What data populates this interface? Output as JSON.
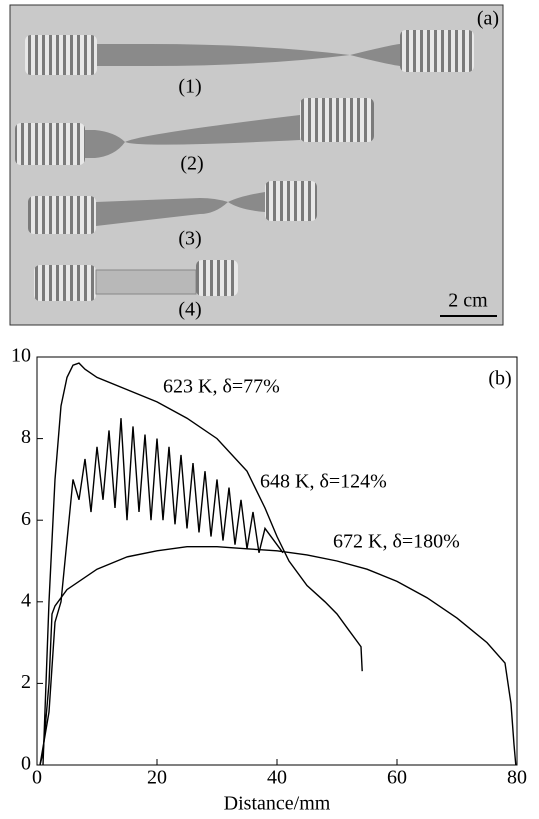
{
  "photo": {
    "panel_label": "(a)",
    "specimens": [
      "(1)",
      "(2)",
      "(3)",
      "(4)"
    ],
    "scale_bar": "2 cm"
  },
  "chart_data": {
    "type": "line",
    "panel_label": "(b)",
    "xlabel": "Distance/mm",
    "xlim": [
      0,
      80
    ],
    "xticks": [
      0,
      20,
      40,
      60,
      80
    ],
    "ylim": [
      0,
      10
    ],
    "yticks": [
      0,
      2,
      4,
      6,
      8,
      10
    ],
    "series": [
      {
        "name": "623 K, δ=77%",
        "color": "#000000",
        "x": [
          1,
          2,
          3,
          4,
          5,
          6,
          7,
          8,
          10,
          15,
          20,
          25,
          30,
          35,
          38,
          40,
          42,
          45,
          48,
          50,
          52,
          54,
          54.2
        ],
        "values": [
          0,
          4,
          7,
          8.8,
          9.5,
          9.8,
          9.85,
          9.7,
          9.5,
          9.2,
          8.9,
          8.5,
          8,
          7.2,
          6.3,
          5.6,
          5,
          4.4,
          4,
          3.7,
          3.3,
          2.9,
          2.3
        ]
      },
      {
        "name": "648 K, δ=124%",
        "color": "#000000",
        "x": [
          0.5,
          2,
          3,
          4,
          5,
          6,
          7,
          8,
          9,
          10,
          11,
          12,
          13,
          14,
          15,
          16,
          17,
          18,
          19,
          20,
          21,
          22,
          23,
          24,
          25,
          26,
          27,
          28,
          29,
          30,
          31,
          32,
          33,
          34,
          35,
          36,
          37,
          38,
          40,
          41
        ],
        "values": [
          0,
          1.3,
          3.5,
          4,
          5.5,
          7,
          6.5,
          7.5,
          6.2,
          7.8,
          6.5,
          8.2,
          6.3,
          8.5,
          6,
          8.3,
          6.2,
          8.1,
          6,
          8,
          6,
          7.8,
          5.9,
          7.6,
          5.8,
          7.4,
          5.7,
          7.2,
          5.6,
          7,
          5.5,
          6.8,
          5.4,
          6.5,
          5.3,
          6.2,
          5.2,
          5.8,
          5.4,
          5.2
        ]
      },
      {
        "name": "672 K, δ=180%",
        "color": "#000000",
        "x": [
          0.5,
          1,
          2,
          2.5,
          3,
          5,
          10,
          15,
          20,
          25,
          30,
          35,
          40,
          45,
          50,
          55,
          60,
          65,
          70,
          75,
          78,
          79,
          79.5,
          79.8
        ],
        "values": [
          0,
          0.3,
          2,
          3.7,
          3.9,
          4.3,
          4.8,
          5.1,
          5.25,
          5.35,
          5.35,
          5.3,
          5.25,
          5.15,
          5,
          4.8,
          4.5,
          4.1,
          3.6,
          3,
          2.5,
          1.5,
          0.5,
          0
        ]
      }
    ]
  }
}
